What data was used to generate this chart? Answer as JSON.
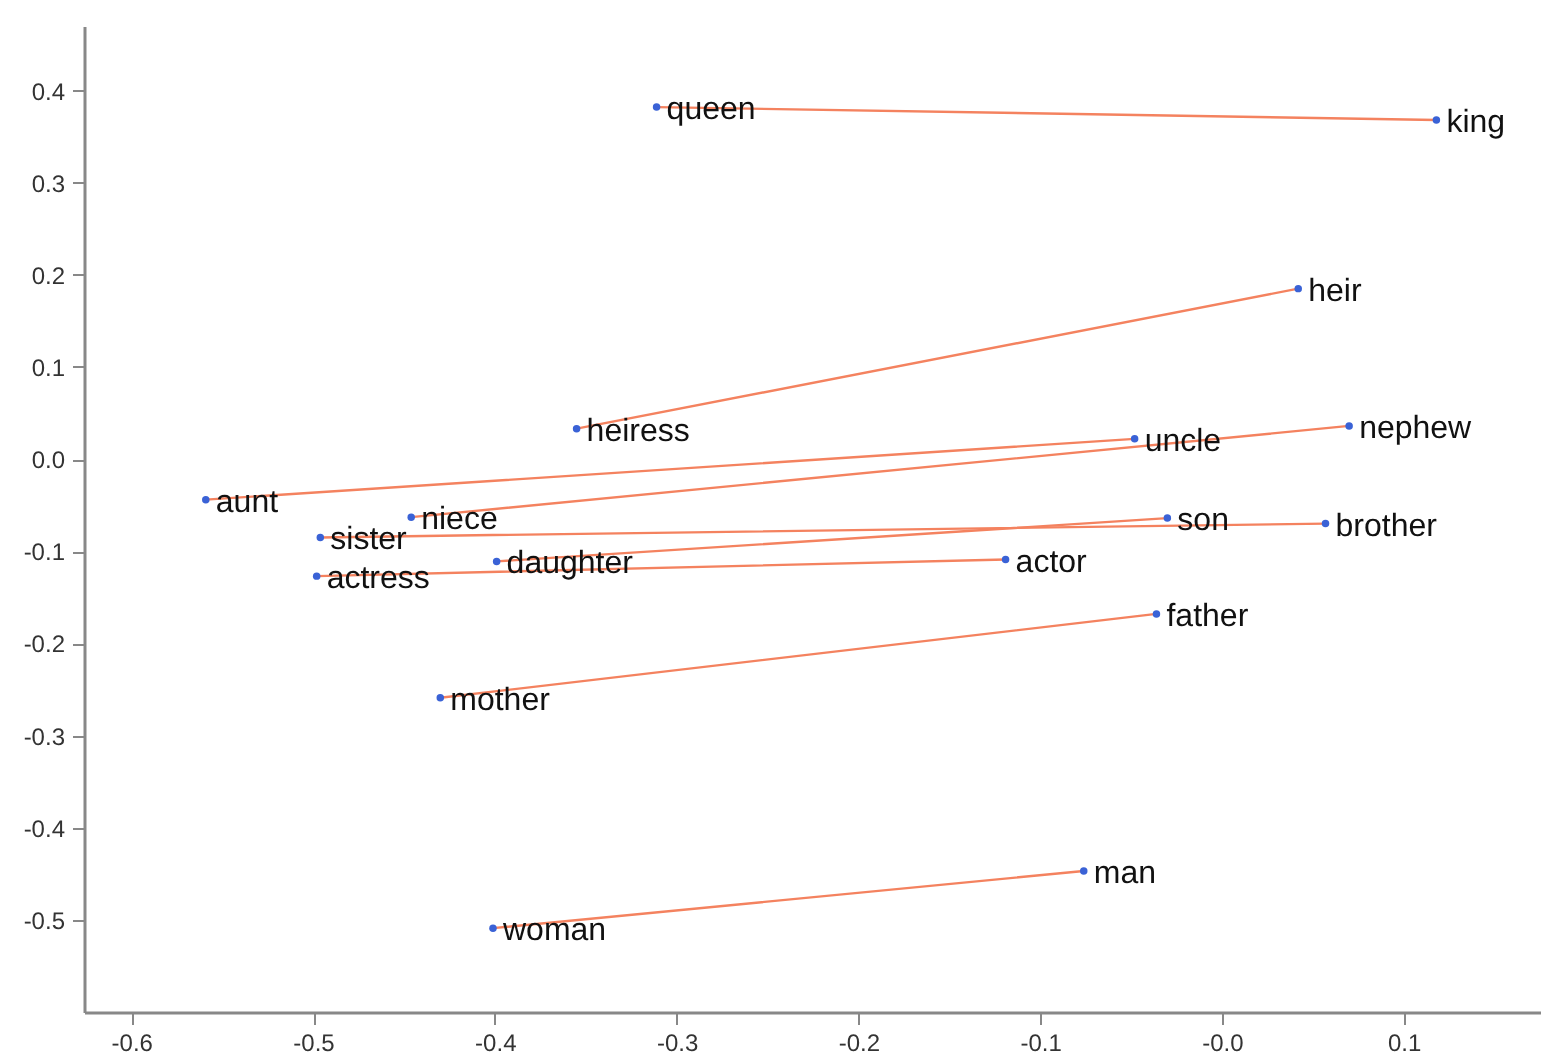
{
  "chart_data": {
    "type": "scatter",
    "xlim": [
      -0.626,
      0.175
    ],
    "xticks": [
      -0.6,
      -0.5,
      -0.4,
      -0.3,
      -0.2,
      -0.1,
      {
        "value": 0,
        "label": "-0.0"
      },
      0.1
    ],
    "ylim": [
      -0.6,
      0.47
    ],
    "yticks": [
      -0.5,
      -0.4,
      -0.3,
      -0.2,
      -0.1,
      {
        "value": 0,
        "label": "0.0"
      },
      0.1,
      0.2,
      0.3,
      0.4
    ],
    "series": [
      {
        "type": "line",
        "color": "#f4825f",
        "x": [
          -0.311,
          0.118
        ],
        "values": [
          0.382,
          0.368
        ]
      },
      {
        "type": "line",
        "color": "#f4825f",
        "x": [
          -0.355,
          0.042
        ],
        "values": [
          0.033,
          0.185
        ]
      },
      {
        "type": "line",
        "color": "#f4825f",
        "x": [
          -0.559,
          -0.048
        ],
        "values": [
          -0.044,
          0.022
        ]
      },
      {
        "type": "line",
        "color": "#f4825f",
        "x": [
          -0.446,
          0.07
        ],
        "values": [
          -0.063,
          0.036
        ]
      },
      {
        "type": "line",
        "color": "#f4825f",
        "x": [
          -0.496,
          0.057
        ],
        "values": [
          -0.085,
          -0.07
        ]
      },
      {
        "type": "line",
        "color": "#f4825f",
        "x": [
          -0.399,
          -0.03
        ],
        "values": [
          -0.111,
          -0.064
        ]
      },
      {
        "type": "line",
        "color": "#f4825f",
        "x": [
          -0.498,
          -0.119
        ],
        "values": [
          -0.127,
          -0.109
        ]
      },
      {
        "type": "line",
        "color": "#f4825f",
        "x": [
          -0.43,
          -0.036
        ],
        "values": [
          -0.259,
          -0.168
        ]
      },
      {
        "type": "line",
        "color": "#f4825f",
        "x": [
          -0.401,
          -0.076
        ],
        "values": [
          -0.509,
          -0.447
        ]
      },
      {
        "color": "#3a62d6",
        "x": [
          -0.311,
          0.118,
          -0.355,
          0.042,
          -0.559,
          -0.048,
          -0.446,
          0.07,
          -0.496,
          0.057,
          -0.399,
          -0.03,
          -0.498,
          -0.119,
          -0.43,
          -0.036,
          -0.401,
          -0.076
        ],
        "values": [
          0.382,
          0.368,
          0.033,
          0.185,
          -0.044,
          0.022,
          -0.063,
          0.036,
          -0.085,
          -0.07,
          -0.111,
          -0.064,
          -0.127,
          -0.109,
          -0.259,
          -0.168,
          -0.509,
          -0.447
        ]
      }
    ],
    "annotations": [
      {
        "text": "queen",
        "x": -0.311,
        "y": 0.382
      },
      {
        "text": "king",
        "x": 0.118,
        "y": 0.368
      },
      {
        "text": "heiress",
        "x": -0.355,
        "y": 0.033
      },
      {
        "text": "heir",
        "x": 0.042,
        "y": 0.185
      },
      {
        "text": "aunt",
        "x": -0.559,
        "y": -0.044
      },
      {
        "text": "uncle",
        "x": -0.048,
        "y": 0.022
      },
      {
        "text": "niece",
        "x": -0.446,
        "y": -0.063
      },
      {
        "text": "nephew",
        "x": 0.07,
        "y": 0.036
      },
      {
        "text": "sister",
        "x": -0.496,
        "y": -0.085
      },
      {
        "text": "brother",
        "x": 0.057,
        "y": -0.07
      },
      {
        "text": "daughter",
        "x": -0.399,
        "y": -0.111
      },
      {
        "text": "son",
        "x": -0.03,
        "y": -0.064
      },
      {
        "text": "actress",
        "x": -0.498,
        "y": -0.127
      },
      {
        "text": "actor",
        "x": -0.119,
        "y": -0.109
      },
      {
        "text": "mother",
        "x": -0.43,
        "y": -0.259
      },
      {
        "text": "father",
        "x": -0.036,
        "y": -0.168
      },
      {
        "text": "woman",
        "x": -0.401,
        "y": -0.509
      },
      {
        "text": "man",
        "x": -0.076,
        "y": -0.447
      }
    ]
  }
}
